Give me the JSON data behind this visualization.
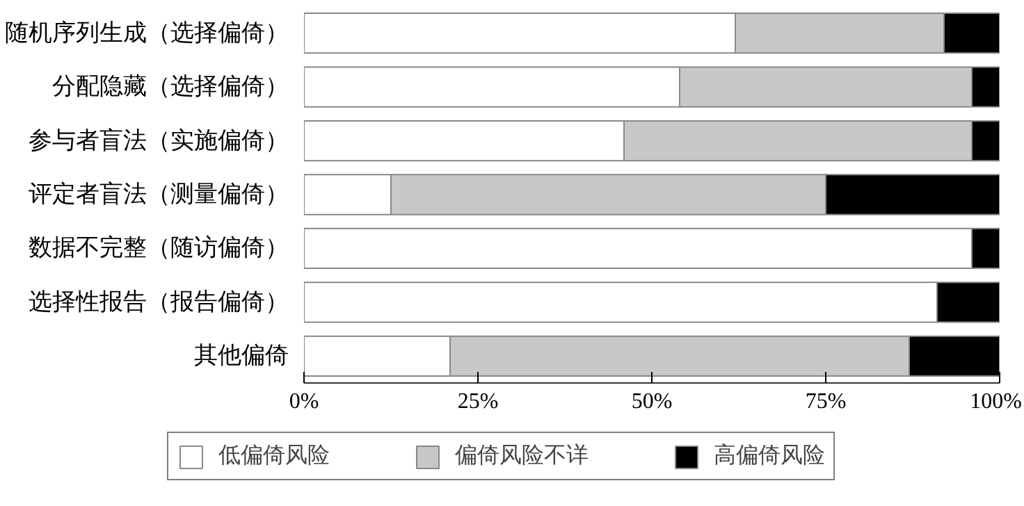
{
  "chart_data": {
    "type": "bar",
    "orientation": "horizontal",
    "stacked": true,
    "categories": [
      "随机序列生成（选择偏倚）",
      "分配隐藏（选择偏倚）",
      "参与者盲法（实施偏倚）",
      "评定者盲法（测量偏倚）",
      "数据不完整（随访偏倚）",
      "选择性报告（报告偏倚）",
      "其他偏倚"
    ],
    "series": [
      {
        "name": "低偏倚风险",
        "color": "#ffffff",
        "values": [
          62,
          54,
          46,
          12.5,
          96,
          91,
          21
        ]
      },
      {
        "name": "偏倚风险不详",
        "color": "#c8c8c8",
        "values": [
          30,
          42,
          50,
          62.5,
          0,
          0,
          66
        ]
      },
      {
        "name": "高偏倚风险",
        "color": "#000000",
        "values": [
          8,
          4,
          4,
          25,
          4,
          9,
          13
        ]
      }
    ],
    "xlim": [
      0,
      100
    ],
    "xticks": [
      {
        "value": 0,
        "label": "0%"
      },
      {
        "value": 25,
        "label": "25%"
      },
      {
        "value": 50,
        "label": "50%"
      },
      {
        "value": 75,
        "label": "75%"
      },
      {
        "value": 100,
        "label": "100%"
      }
    ],
    "grid": false,
    "legend": "bottom"
  }
}
